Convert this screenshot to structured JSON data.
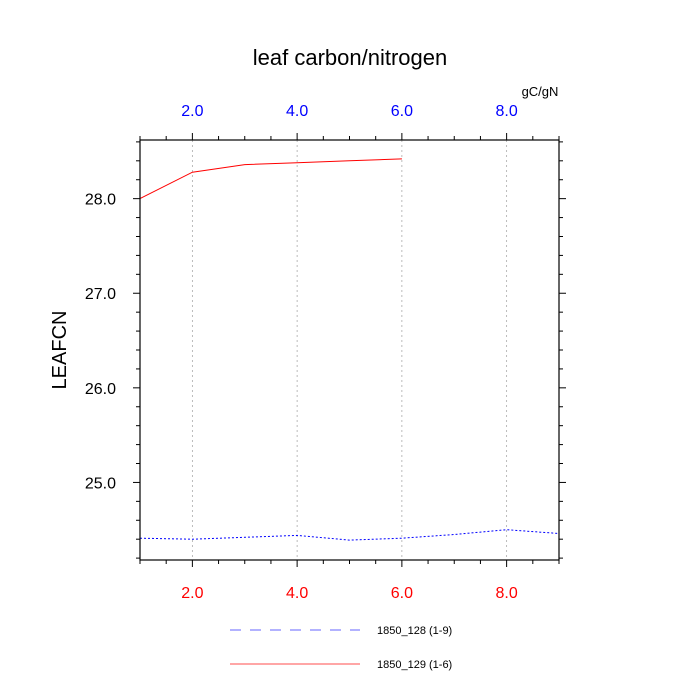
{
  "chart_data": {
    "type": "line",
    "title": "leaf carbon/nitrogen",
    "ylabel": "LEAFCN",
    "top_axis_unit": "gC/gN",
    "xlim": [
      1,
      9
    ],
    "ylim": [
      24.18,
      28.62
    ],
    "x_ticks": [
      "2.0",
      "4.0",
      "6.0",
      "8.0"
    ],
    "x_tick_values": [
      2,
      4,
      6,
      8
    ],
    "y_ticks": [
      "25.0",
      "26.0",
      "27.0",
      "28.0"
    ],
    "y_tick_values": [
      25,
      26,
      27,
      28
    ],
    "grid": "vertical dotted at major x ticks",
    "colors": {
      "bottom_axis": "#ff0000",
      "top_axis": "#0000ff",
      "grid": "#aaaaaa"
    },
    "series": [
      {
        "name": "1850_128 (1-9)",
        "color": "#0000ff",
        "style": "dashed",
        "x": [
          1,
          2,
          3,
          4,
          5,
          6,
          7,
          8,
          9
        ],
        "values": [
          24.41,
          24.4,
          24.42,
          24.44,
          24.39,
          24.41,
          24.45,
          24.5,
          24.46
        ]
      },
      {
        "name": "1850_129 (1-6)",
        "color": "#ff0000",
        "style": "solid",
        "x": [
          1,
          2,
          3,
          4,
          5,
          6
        ],
        "values": [
          28.0,
          28.28,
          28.36,
          28.38,
          28.4,
          28.42
        ]
      }
    ]
  }
}
